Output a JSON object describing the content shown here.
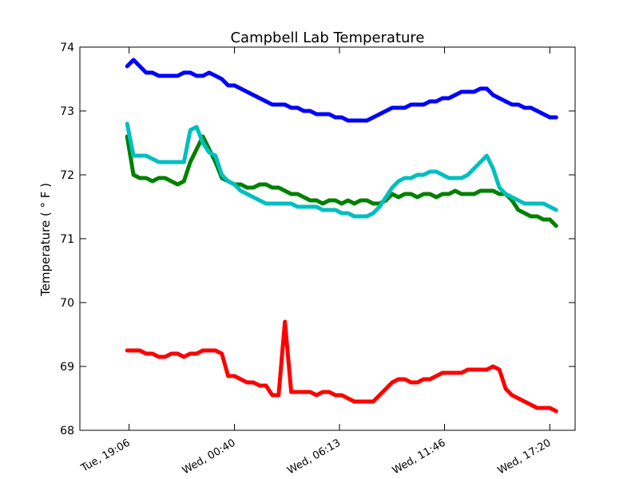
{
  "chart_data": {
    "type": "line",
    "title": "Campbell Lab Temperature",
    "ylabel": "Temperature ( ° F )",
    "xlabel": "",
    "ylim": [
      68,
      74
    ],
    "yticks": [
      "68",
      "69",
      "70",
      "71",
      "72",
      "73",
      "74"
    ],
    "xtick_labels": [
      "Tue, 19:06",
      "Wed, 00:40",
      "Wed, 06:13",
      "Wed, 11:46",
      "Wed, 17:20"
    ],
    "xlim": [
      "Tue, 16:30",
      "Wed, 18:40"
    ],
    "x": [
      "Tue, 19:00",
      "Tue, 19:20",
      "Tue, 19:40",
      "Tue, 20:00",
      "Tue, 20:20",
      "Tue, 20:40",
      "Tue, 21:00",
      "Tue, 21:20",
      "Tue, 21:40",
      "Tue, 22:00",
      "Tue, 22:20",
      "Tue, 22:40",
      "Tue, 23:00",
      "Tue, 23:20",
      "Tue, 23:40",
      "Wed, 00:00",
      "Wed, 00:20",
      "Wed, 00:40",
      "Wed, 01:00",
      "Wed, 01:20",
      "Wed, 01:40",
      "Wed, 02:00",
      "Wed, 02:20",
      "Wed, 02:40",
      "Wed, 03:00",
      "Wed, 03:20",
      "Wed, 03:40",
      "Wed, 04:00",
      "Wed, 04:20",
      "Wed, 04:40",
      "Wed, 05:00",
      "Wed, 05:20",
      "Wed, 05:40",
      "Wed, 06:00",
      "Wed, 06:20",
      "Wed, 06:40",
      "Wed, 07:00",
      "Wed, 07:20",
      "Wed, 07:40",
      "Wed, 08:00",
      "Wed, 08:20",
      "Wed, 08:40",
      "Wed, 09:00",
      "Wed, 09:20",
      "Wed, 09:40",
      "Wed, 10:00",
      "Wed, 10:20",
      "Wed, 10:40",
      "Wed, 11:00",
      "Wed, 11:20",
      "Wed, 11:40",
      "Wed, 12:00",
      "Wed, 12:20",
      "Wed, 12:40",
      "Wed, 13:00",
      "Wed, 13:20",
      "Wed, 13:40",
      "Wed, 14:00",
      "Wed, 14:20",
      "Wed, 14:40",
      "Wed, 15:00",
      "Wed, 15:20",
      "Wed, 15:40",
      "Wed, 16:00",
      "Wed, 16:20",
      "Wed, 16:40",
      "Wed, 17:00",
      "Wed, 17:20",
      "Wed, 17:40"
    ],
    "series": [
      {
        "color": "#0000ff",
        "values": [
          73.7,
          73.8,
          73.7,
          73.6,
          73.6,
          73.55,
          73.55,
          73.55,
          73.55,
          73.6,
          73.6,
          73.55,
          73.55,
          73.6,
          73.55,
          73.5,
          73.4,
          73.4,
          73.35,
          73.3,
          73.25,
          73.2,
          73.15,
          73.1,
          73.1,
          73.1,
          73.05,
          73.05,
          73.0,
          73.0,
          72.95,
          72.95,
          72.95,
          72.9,
          72.9,
          72.85,
          72.85,
          72.85,
          72.85,
          72.9,
          72.95,
          73.0,
          73.05,
          73.05,
          73.05,
          73.1,
          73.1,
          73.1,
          73.15,
          73.15,
          73.2,
          73.2,
          73.25,
          73.3,
          73.3,
          73.3,
          73.35,
          73.35,
          73.25,
          73.2,
          73.15,
          73.1,
          73.1,
          73.05,
          73.05,
          73.0,
          72.95,
          72.9,
          72.9
        ]
      },
      {
        "color": "#008000",
        "values": [
          72.6,
          72.0,
          71.95,
          71.95,
          71.9,
          71.95,
          71.95,
          71.9,
          71.85,
          71.9,
          72.2,
          72.4,
          72.6,
          72.4,
          72.2,
          71.95,
          71.9,
          71.85,
          71.85,
          71.8,
          71.8,
          71.85,
          71.85,
          71.8,
          71.8,
          71.75,
          71.7,
          71.7,
          71.65,
          71.6,
          71.6,
          71.55,
          71.6,
          71.6,
          71.55,
          71.6,
          71.55,
          71.6,
          71.6,
          71.55,
          71.55,
          71.6,
          71.7,
          71.65,
          71.7,
          71.7,
          71.65,
          71.7,
          71.7,
          71.65,
          71.7,
          71.7,
          71.75,
          71.7,
          71.7,
          71.7,
          71.75,
          71.75,
          71.75,
          71.7,
          71.7,
          71.6,
          71.45,
          71.4,
          71.35,
          71.35,
          71.3,
          71.3,
          71.2
        ]
      },
      {
        "color": "#00bfbf",
        "values": [
          72.8,
          72.3,
          72.3,
          72.3,
          72.25,
          72.2,
          72.2,
          72.2,
          72.2,
          72.2,
          72.7,
          72.75,
          72.5,
          72.35,
          72.3,
          72.0,
          71.9,
          71.85,
          71.75,
          71.7,
          71.65,
          71.6,
          71.55,
          71.55,
          71.55,
          71.55,
          71.55,
          71.5,
          71.5,
          71.5,
          71.5,
          71.45,
          71.45,
          71.45,
          71.4,
          71.4,
          71.35,
          71.35,
          71.35,
          71.4,
          71.5,
          71.65,
          71.8,
          71.9,
          71.95,
          71.95,
          72.0,
          72.0,
          72.05,
          72.05,
          72.0,
          71.95,
          71.95,
          71.95,
          72.0,
          72.1,
          72.2,
          72.3,
          72.1,
          71.8,
          71.7,
          71.65,
          71.6,
          71.55,
          71.55,
          71.55,
          71.55,
          71.5,
          71.45
        ]
      },
      {
        "color": "#ff0000",
        "values": [
          69.25,
          69.25,
          69.25,
          69.2,
          69.2,
          69.15,
          69.15,
          69.2,
          69.2,
          69.15,
          69.2,
          69.2,
          69.25,
          69.25,
          69.25,
          69.2,
          68.85,
          68.85,
          68.8,
          68.75,
          68.75,
          68.7,
          68.7,
          68.55,
          68.55,
          69.7,
          68.6,
          68.6,
          68.6,
          68.6,
          68.55,
          68.6,
          68.6,
          68.55,
          68.55,
          68.5,
          68.45,
          68.45,
          68.45,
          68.45,
          68.55,
          68.65,
          68.75,
          68.8,
          68.8,
          68.75,
          68.75,
          68.8,
          68.8,
          68.85,
          68.9,
          68.9,
          68.9,
          68.9,
          68.95,
          68.95,
          68.95,
          68.95,
          69.0,
          68.95,
          68.65,
          68.55,
          68.5,
          68.45,
          68.4,
          68.35,
          68.35,
          68.35,
          68.3
        ]
      }
    ],
    "grid": false,
    "legend": "none"
  }
}
